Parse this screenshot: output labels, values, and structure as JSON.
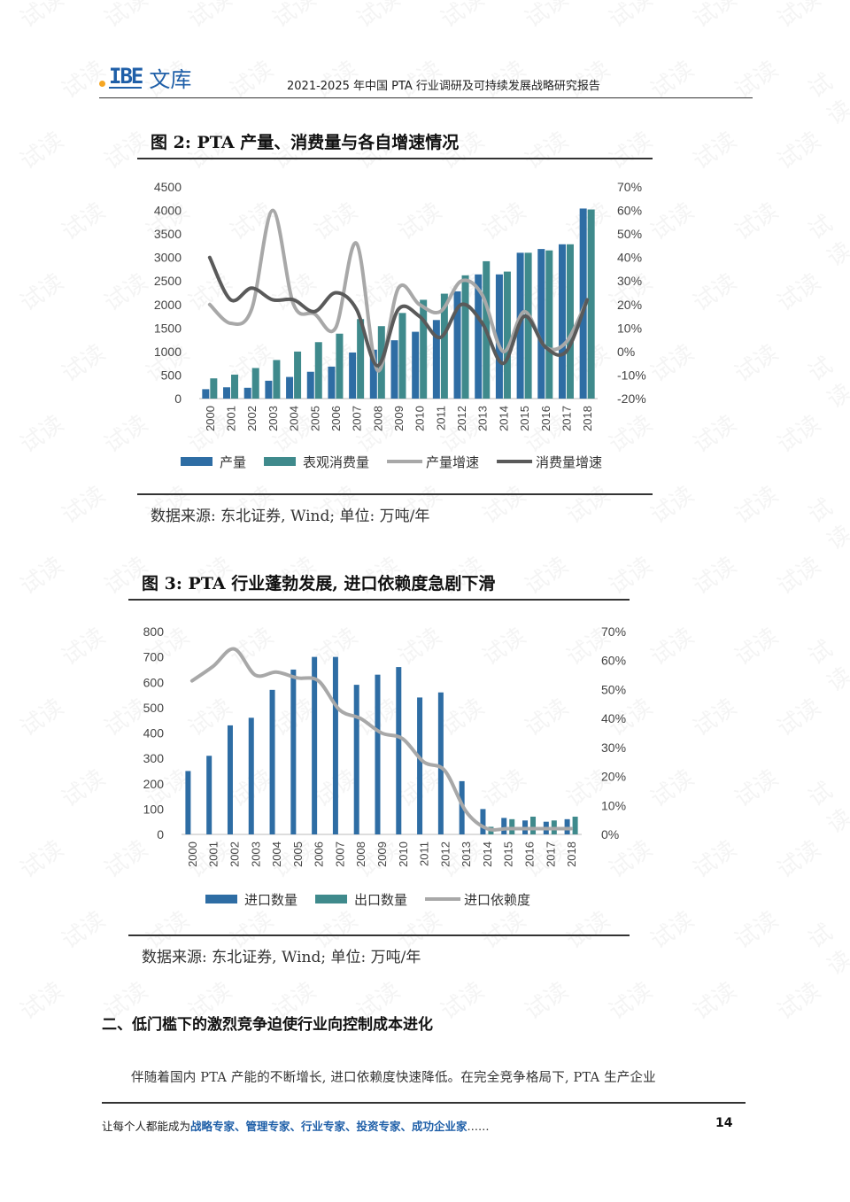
{
  "header": {
    "logo_mark": "IBE",
    "logo_text": "文库",
    "title": "2021-2025 年中国 PTA 行业调研及可持续发展战略研究报告"
  },
  "figure2": {
    "title": "图 2:   PTA 产量、消费量与各自增速情况",
    "source": "数据来源:  东北证券,  Wind;  单位:  万吨/年"
  },
  "figure3": {
    "title": "图 3:   PTA 行业蓬勃发展, 进口依赖度急剧下滑",
    "source": "数据来源:  东北证券,  Wind;  单位:  万吨/年"
  },
  "section": {
    "heading": "二、低门槛下的激烈竞争迫使行业向控制成本进化",
    "paragraph": "伴随着国内 PTA 产能的不断增长, 进口依赖度快速降低。在完全竞争格局下, PTA 生产企业"
  },
  "footer": {
    "prefix": "让每个人都能成为",
    "highlight": "战略专家、管理专家、行业专家、投资专家、成功企业家",
    "suffix": "……",
    "page_number": "14"
  },
  "watermark": "试读",
  "colors": {
    "bar_dark": "#2e6da4",
    "bar_teal": "#3f8a8c",
    "line_light": "#a8a8a8",
    "line_dark": "#5a5a5a",
    "accent": "#1f5fa8"
  },
  "chart_data": [
    {
      "type": "bar",
      "categories": [
        "2000",
        "2001",
        "2002",
        "2003",
        "2004",
        "2005",
        "2006",
        "2007",
        "2008",
        "2009",
        "2010",
        "2011",
        "2012",
        "2013",
        "2014",
        "2015",
        "2016",
        "2017",
        "2018"
      ],
      "series": [
        {
          "name": "产量",
          "kind": "bar",
          "axis": "left",
          "values": [
            200,
            240,
            230,
            380,
            460,
            570,
            680,
            980,
            1040,
            1240,
            1420,
            1670,
            2280,
            2640,
            2640,
            3100,
            3180,
            3280,
            4040
          ]
        },
        {
          "name": "表观消费量",
          "kind": "bar",
          "axis": "left",
          "values": [
            430,
            510,
            650,
            820,
            1000,
            1200,
            1380,
            1690,
            1540,
            1820,
            2100,
            2230,
            2620,
            2920,
            2700,
            3100,
            3150,
            3280,
            4020
          ]
        },
        {
          "name": "产量增速",
          "kind": "line",
          "axis": "right",
          "values": [
            0.2,
            0.12,
            0.18,
            0.6,
            0.2,
            0.16,
            0.1,
            0.46,
            -0.08,
            0.27,
            0.2,
            0.17,
            0.3,
            0.24,
            0.0,
            0.17,
            0.02,
            0.04,
            0.22
          ]
        },
        {
          "name": "消费量增速",
          "kind": "line",
          "axis": "right",
          "values": [
            0.4,
            0.22,
            0.27,
            0.22,
            0.22,
            0.17,
            0.25,
            0.18,
            -0.06,
            0.18,
            0.15,
            0.06,
            0.2,
            0.12,
            -0.05,
            0.15,
            0.02,
            0.0,
            0.22
          ]
        }
      ],
      "ylim_left": [
        0,
        4500
      ],
      "yticks_left": [
        "4500",
        "4000",
        "3500",
        "3000",
        "2500",
        "2000",
        "1500",
        "1000",
        "500",
        "0"
      ],
      "ylim_right": [
        -0.2,
        0.7
      ],
      "yticks_right": [
        "70%",
        "60%",
        "50%",
        "40%",
        "30%",
        "20%",
        "10%",
        "0%",
        "-10%",
        "-20%"
      ],
      "legend": [
        "产量",
        "表观消费量",
        "产量增速",
        "消费量增速"
      ],
      "legend_position": "bottom"
    },
    {
      "type": "bar",
      "categories": [
        "2000",
        "2001",
        "2002",
        "2003",
        "2004",
        "2005",
        "2006",
        "2007",
        "2008",
        "2009",
        "2010",
        "2011",
        "2012",
        "2013",
        "2014",
        "2015",
        "2016",
        "2017",
        "2018"
      ],
      "series": [
        {
          "name": "进口数量",
          "kind": "bar",
          "axis": "left",
          "values": [
            250,
            310,
            430,
            460,
            570,
            650,
            700,
            700,
            590,
            630,
            660,
            540,
            560,
            210,
            100,
            65,
            55,
            50,
            60
          ]
        },
        {
          "name": "出口数量",
          "kind": "bar",
          "axis": "left",
          "values": [
            0,
            0,
            0,
            0,
            0,
            0,
            0,
            0,
            0,
            0,
            0,
            0,
            0,
            0,
            30,
            60,
            70,
            55,
            70
          ]
        },
        {
          "name": "进口依赖度",
          "kind": "line",
          "axis": "right",
          "values": [
            0.53,
            0.58,
            0.64,
            0.55,
            0.56,
            0.54,
            0.53,
            0.43,
            0.4,
            0.35,
            0.33,
            0.25,
            0.22,
            0.08,
            0.02,
            0.02,
            0.02,
            0.02,
            0.02
          ]
        }
      ],
      "ylim_left": [
        0,
        800
      ],
      "yticks_left": [
        "800",
        "700",
        "600",
        "500",
        "400",
        "300",
        "200",
        "100",
        "0"
      ],
      "ylim_right": [
        0,
        0.7
      ],
      "yticks_right": [
        "70%",
        "60%",
        "50%",
        "40%",
        "30%",
        "20%",
        "10%",
        "0%"
      ],
      "legend": [
        "进口数量",
        "出口数量",
        "进口依赖度"
      ],
      "legend_position": "bottom"
    }
  ]
}
